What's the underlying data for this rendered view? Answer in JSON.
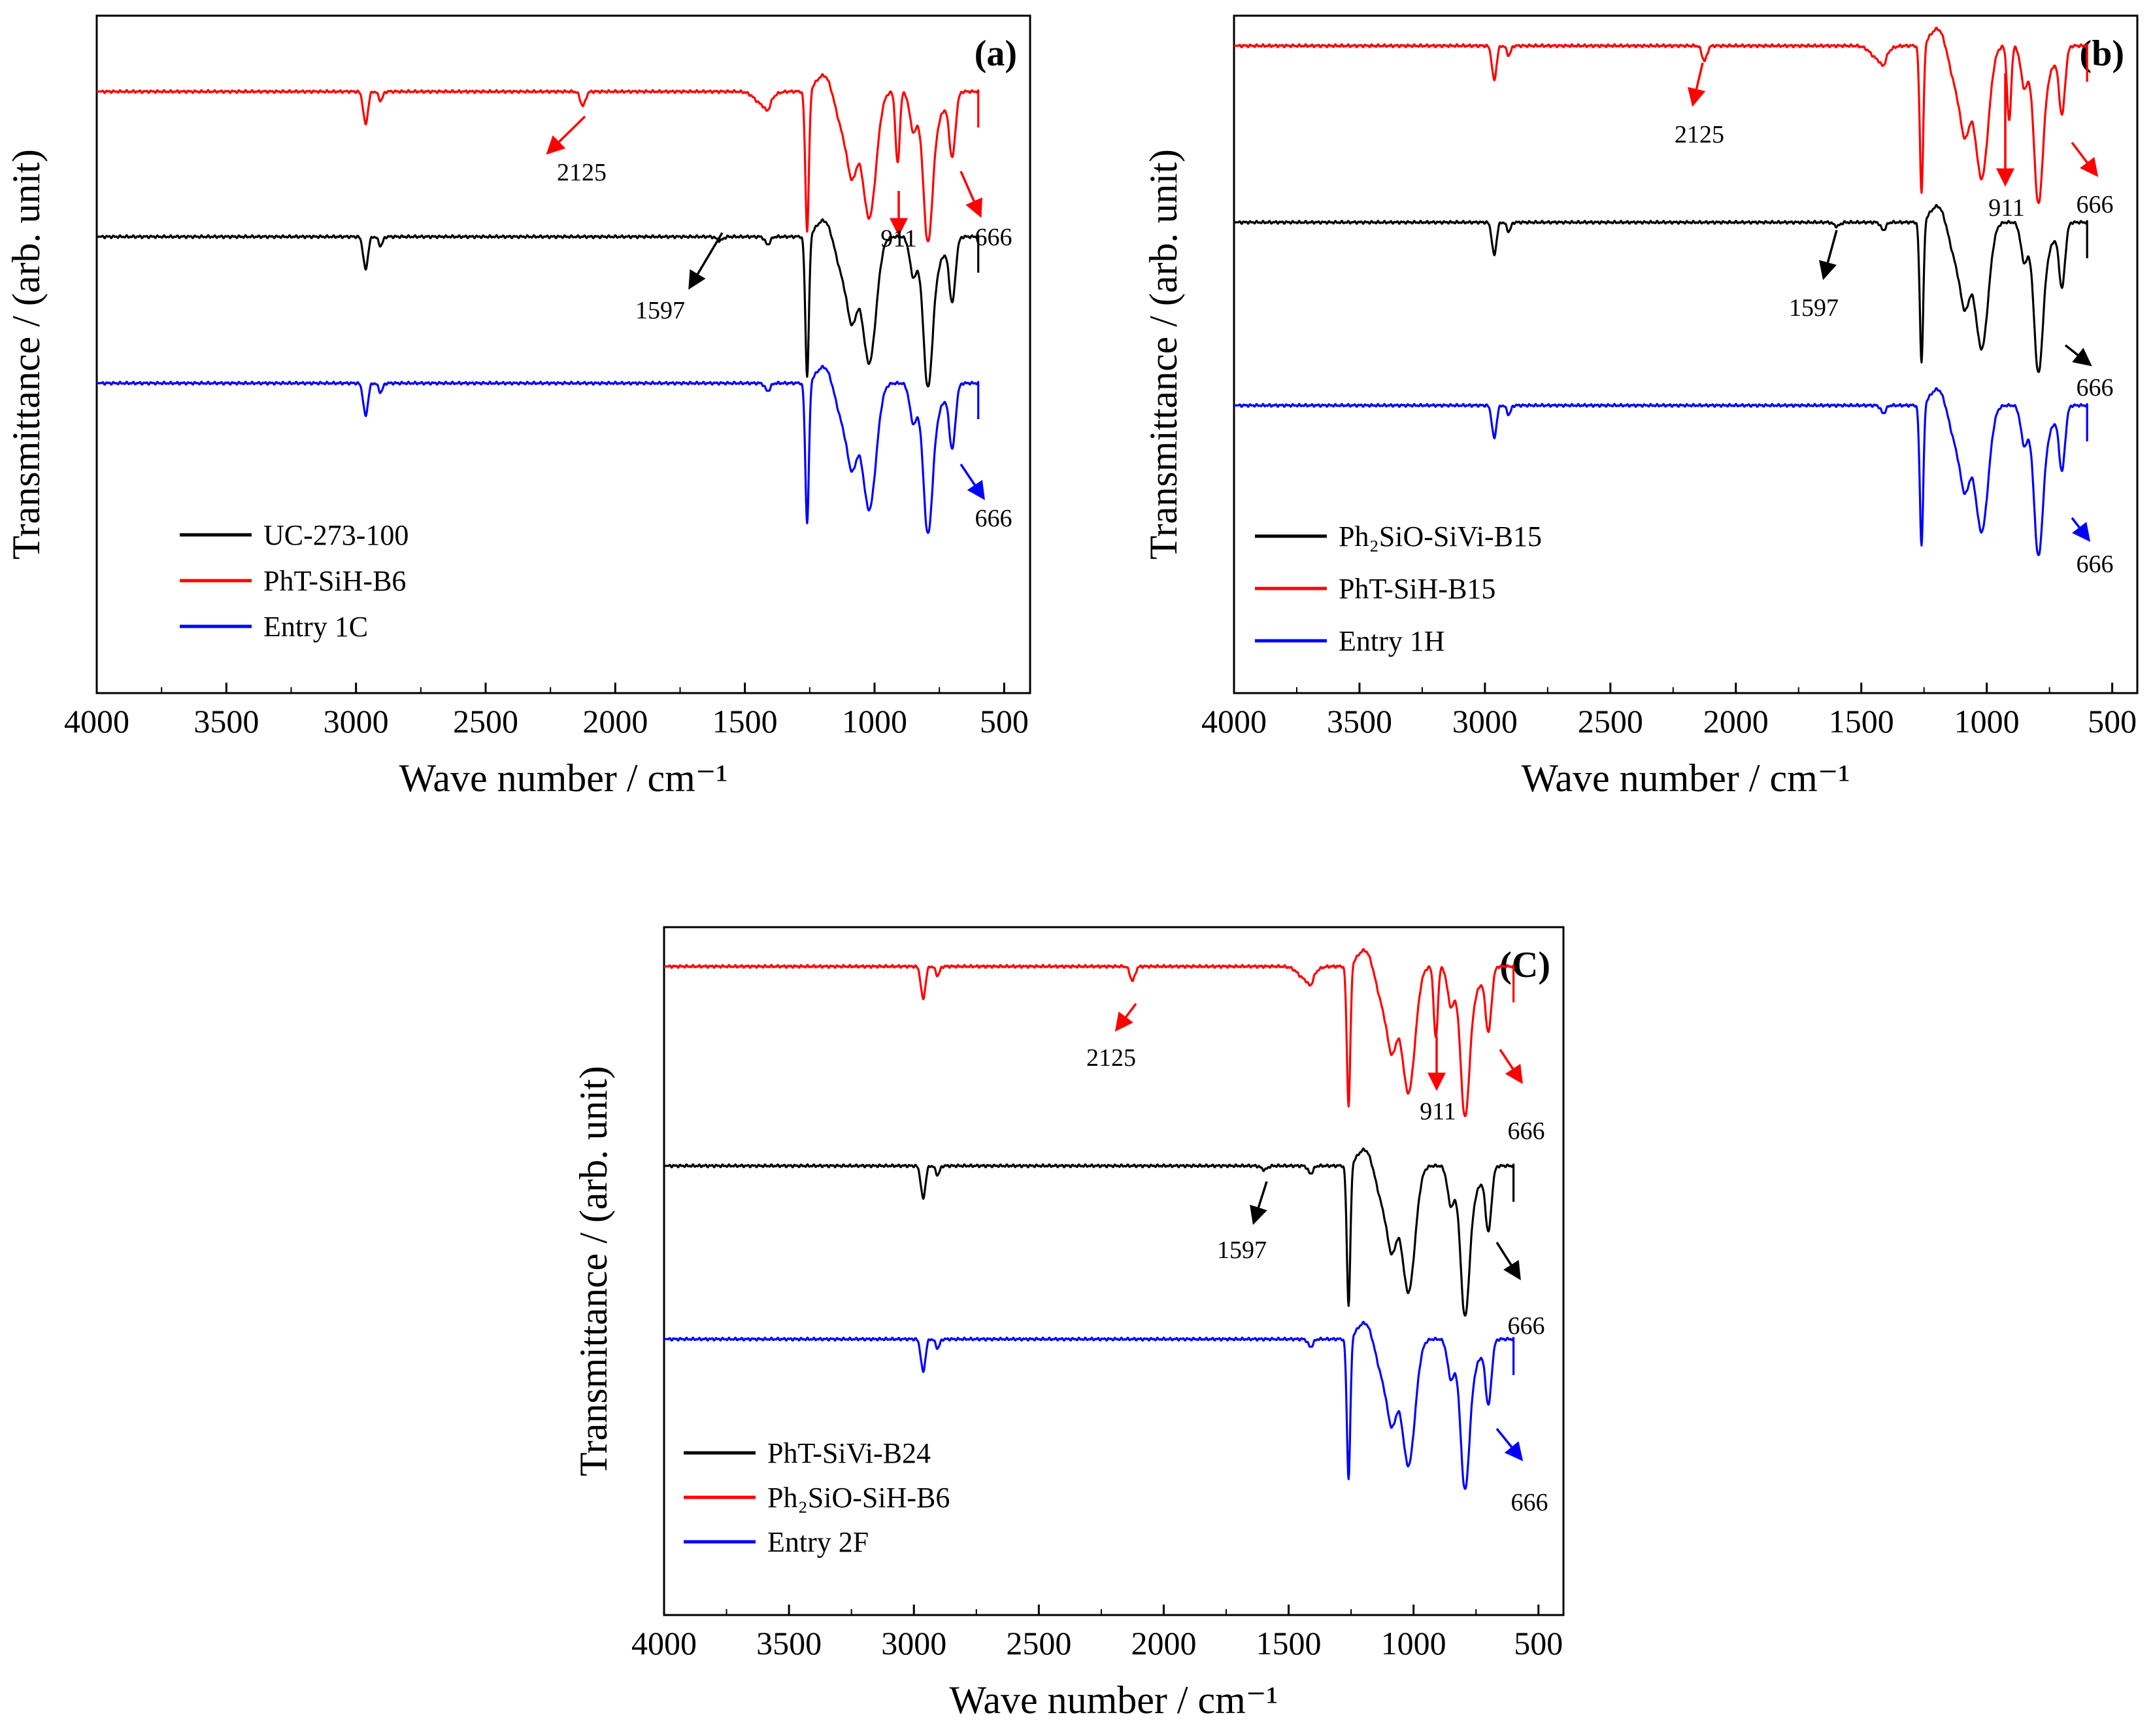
{
  "chart_data": [
    {
      "type": "line",
      "panel": "(a)",
      "xlabel": "Wave number / cm⁻¹",
      "ylabel": "Transmittance / (arb. unit)",
      "xlim": [
        4000,
        400
      ],
      "xticks": [
        "4000",
        "3500",
        "3000",
        "2500",
        "2000",
        "1500",
        "1000",
        "500"
      ],
      "legend_position": "bottom-left",
      "series": [
        {
          "name": "UC-273-100",
          "color": "#000000"
        },
        {
          "name": "PhT-SiH-B6",
          "color": "#ff0000"
        },
        {
          "name": "Entry 1C",
          "color": "#0000ff"
        }
      ],
      "annotations": [
        {
          "text": "2125",
          "x": 2125,
          "color": "#ff0000"
        },
        {
          "text": "911",
          "x": 911,
          "color": "#ff0000"
        },
        {
          "text": "666",
          "x": 666,
          "color": "#ff0000"
        },
        {
          "text": "1597",
          "x": 1597,
          "color": "#000000"
        },
        {
          "text": "666",
          "x": 666,
          "color": "#0000ff"
        }
      ]
    },
    {
      "type": "line",
      "panel": "(b)",
      "xlabel": "Wave number / cm⁻¹",
      "ylabel": "Transmittance / (arb. unit)",
      "xlim": [
        4000,
        400
      ],
      "xticks": [
        "4000",
        "3500",
        "3000",
        "2500",
        "2000",
        "1500",
        "1000",
        "500"
      ],
      "legend_position": "bottom-left",
      "series": [
        {
          "name": "Ph₂SiO-SiVi-B15",
          "color": "#000000"
        },
        {
          "name": "PhT-SiH-B15",
          "color": "#ff0000"
        },
        {
          "name": "Entry 1H",
          "color": "#0000ff"
        }
      ],
      "annotations": [
        {
          "text": "2125",
          "x": 2125,
          "color": "#ff0000"
        },
        {
          "text": "911",
          "x": 911,
          "color": "#ff0000"
        },
        {
          "text": "666",
          "x": 666,
          "color": "#ff0000"
        },
        {
          "text": "1597",
          "x": 1597,
          "color": "#000000"
        },
        {
          "text": "666",
          "x": 666,
          "color": "#000000"
        },
        {
          "text": "666",
          "x": 666,
          "color": "#0000ff"
        }
      ]
    },
    {
      "type": "line",
      "panel": "(C)",
      "xlabel": "Wave number / cm⁻¹",
      "ylabel": "Transmittance / (arb. unit)",
      "xlim": [
        4000,
        400
      ],
      "xticks": [
        "4000",
        "3500",
        "3000",
        "2500",
        "2000",
        "1500",
        "1000",
        "500"
      ],
      "legend_position": "bottom-left",
      "series": [
        {
          "name": "PhT-SiVi-B24",
          "color": "#000000"
        },
        {
          "name": "Ph₂SiO-SiH-B6",
          "color": "#ff0000"
        },
        {
          "name": "Entry 2F",
          "color": "#0000ff"
        }
      ],
      "annotations": [
        {
          "text": "2125",
          "x": 2125,
          "color": "#ff0000"
        },
        {
          "text": "911",
          "x": 911,
          "color": "#ff0000"
        },
        {
          "text": "666",
          "x": 666,
          "color": "#ff0000"
        },
        {
          "text": "1597",
          "x": 1597,
          "color": "#000000"
        },
        {
          "text": "666",
          "x": 666,
          "color": "#000000"
        },
        {
          "text": "666",
          "x": 666,
          "color": "#0000ff"
        }
      ]
    }
  ]
}
